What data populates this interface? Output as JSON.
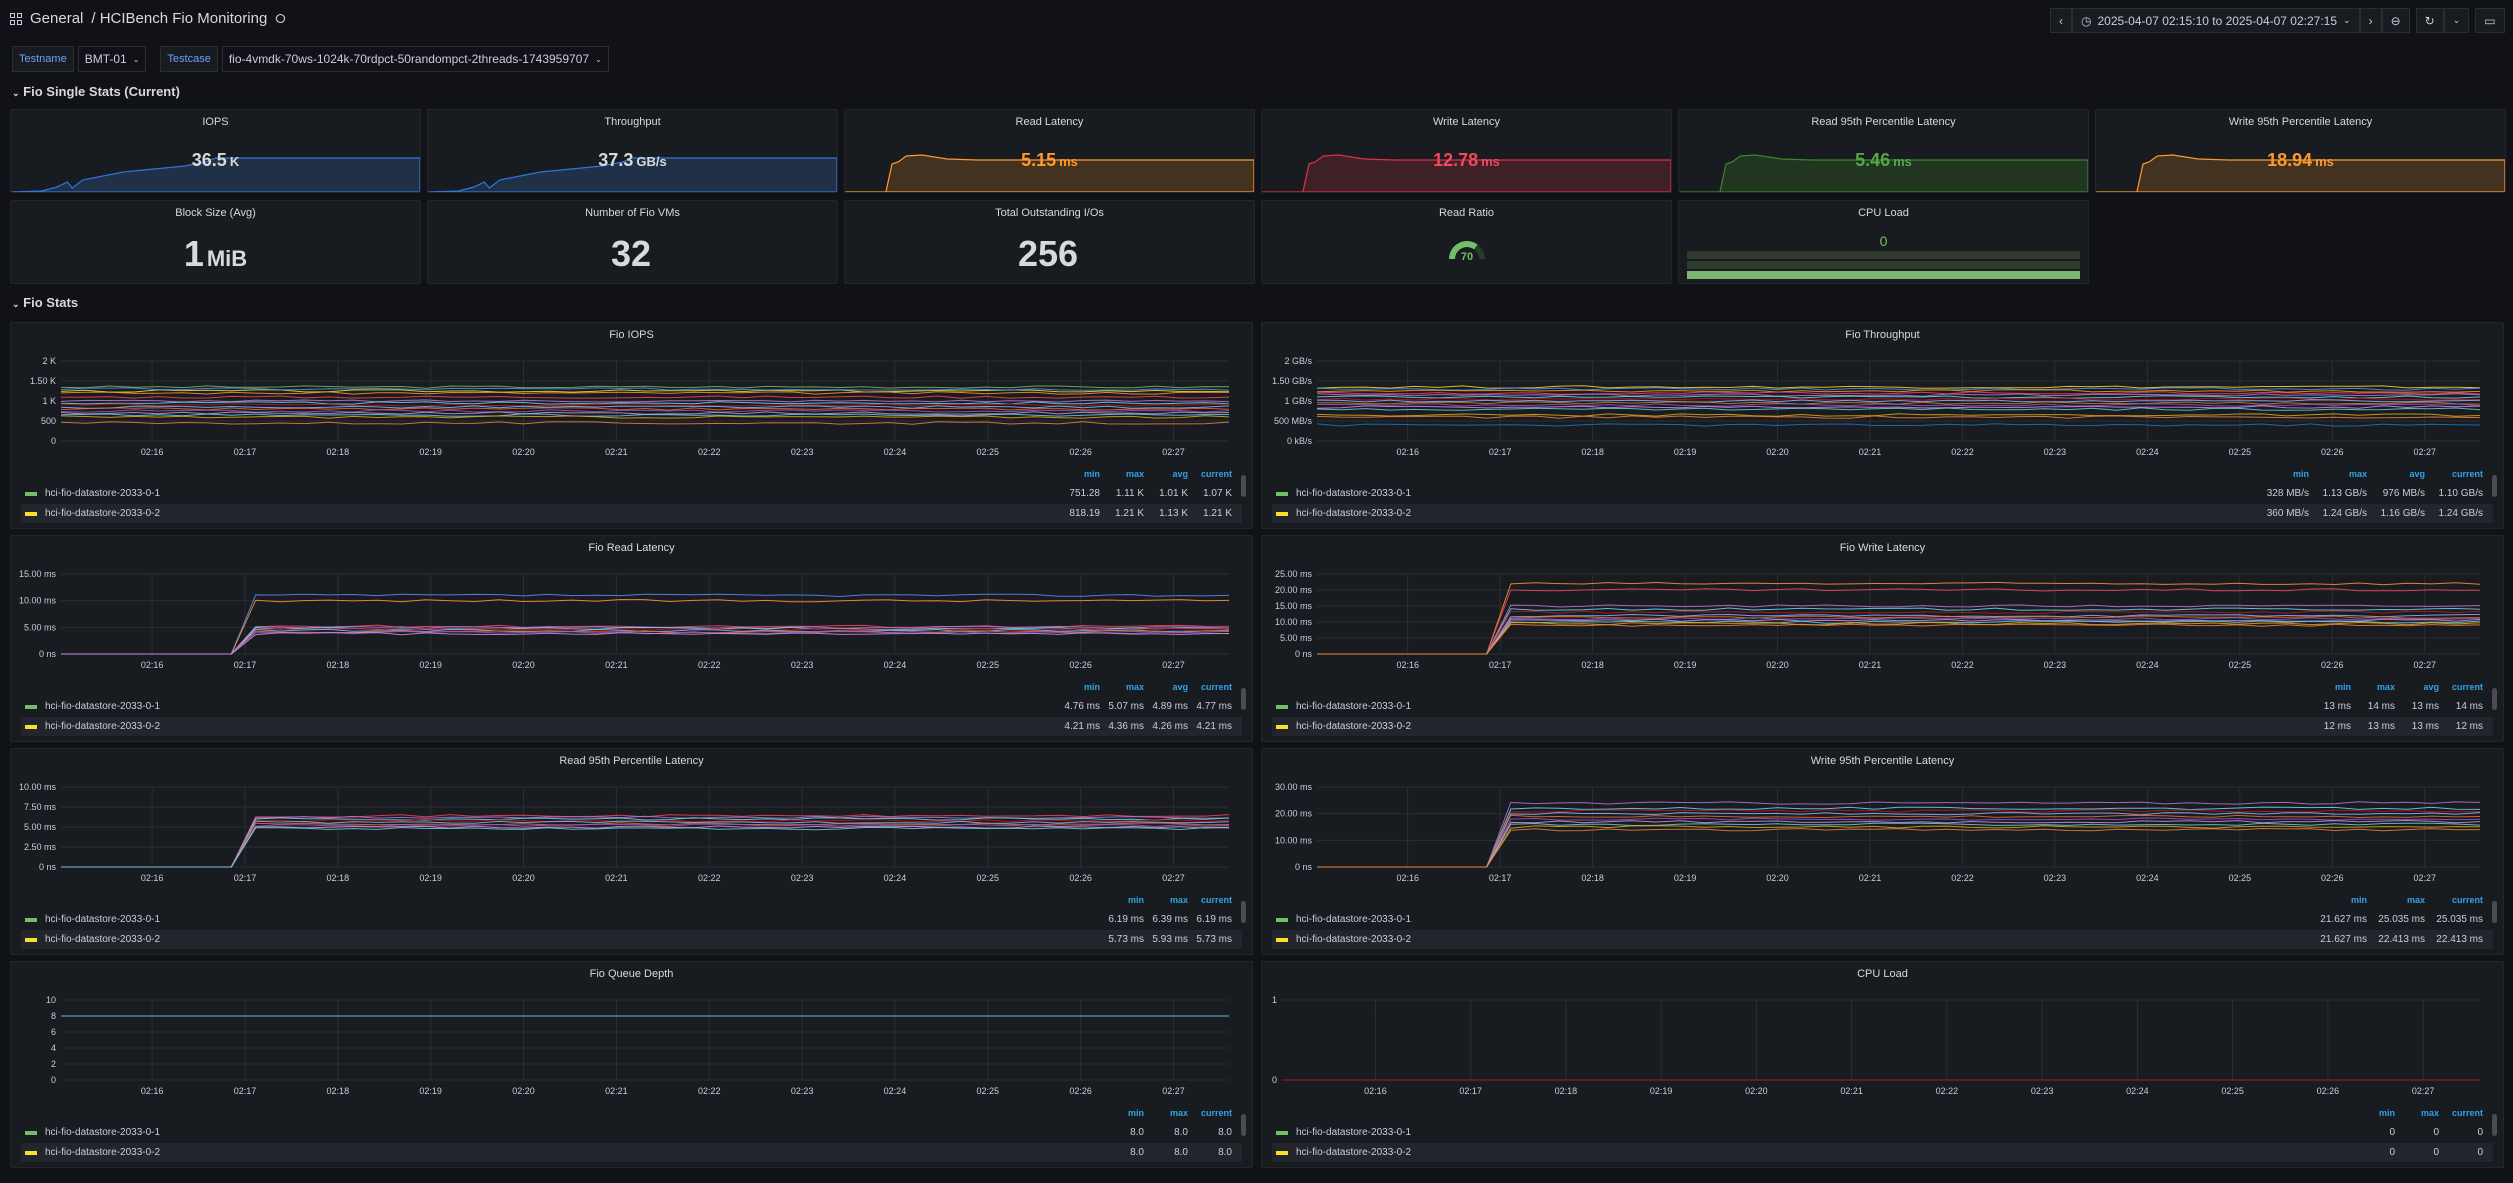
{
  "header": {
    "folder": "General",
    "title": "/ HCIBench Fio Monitoring",
    "time_range": "2025-04-07 02:15:10 to 2025-04-07 02:27:15"
  },
  "variables": [
    {
      "label": "Testname",
      "value": "BMT-01"
    },
    {
      "label": "Testcase",
      "value": "fio-4vmdk-70ws-1024k-70rdpct-50randompct-2threads-1743959707"
    }
  ],
  "rows": {
    "single_stats": "Fio Single Stats (Current)",
    "fio_stats": "Fio Stats"
  },
  "stats": [
    {
      "title": "IOPS",
      "value": "36.5",
      "unit": "K",
      "color": "#d8d9da",
      "fill": "#1f3047",
      "line": "#3274d9"
    },
    {
      "title": "Throughput",
      "value": "37.3",
      "unit": "GB/s",
      "color": "#d8d9da",
      "fill": "#1f3047",
      "line": "#3274d9"
    },
    {
      "title": "Read Latency",
      "value": "5.15",
      "unit": "ms",
      "color": "#ff9830",
      "fill": "#42321f",
      "line": "#ff9830"
    },
    {
      "title": "Write Latency",
      "value": "12.78",
      "unit": "ms",
      "color": "#f2495c",
      "fill": "#3f2027",
      "line": "#e02f44"
    },
    {
      "title": "Read 95th Percentile Latency",
      "value": "5.46",
      "unit": "ms",
      "color": "#56a64b",
      "fill": "#213521",
      "line": "#37872d"
    },
    {
      "title": "Write 95th Percentile Latency",
      "value": "18.94",
      "unit": "ms",
      "color": "#ff9830",
      "fill": "#42321f",
      "line": "#ff9830"
    },
    {
      "title": "Block Size (Avg)",
      "value": "1",
      "unit": "MiB",
      "color": "#d8d9da"
    },
    {
      "title": "Number of Fio VMs",
      "value": "32",
      "unit": "",
      "color": "#d8d9da"
    },
    {
      "title": "Total Outstanding I/Os",
      "value": "256",
      "unit": "",
      "color": "#d8d9da"
    },
    {
      "title": "Read Ratio",
      "value": "70",
      "unit": "",
      "color": "#73bf69",
      "gauge_percent": 70
    },
    {
      "title": "CPU Load",
      "value": "0",
      "unit": "",
      "color": "#73bf69"
    }
  ],
  "legend_series": [
    {
      "name": "hci-fio-datastore-2033-0-1",
      "color": "#73bf69"
    },
    {
      "name": "hci-fio-datastore-2033-0-2",
      "color": "#fade2a"
    }
  ],
  "chart_data": [
    {
      "type": "line",
      "title": "Fio IOPS",
      "yticks": [
        "2 K",
        "1.50 K",
        "1 K",
        "500",
        "0"
      ],
      "ylim": [
        0,
        2000
      ],
      "xticks": [
        "02:16",
        "02:17",
        "02:18",
        "02:19",
        "02:20",
        "02:21",
        "02:22",
        "02:23",
        "02:24",
        "02:25",
        "02:26",
        "02:27"
      ],
      "legend_cols": [
        "min",
        "max",
        "avg",
        "current"
      ],
      "legend_values": [
        [
          "751.28",
          "1.11 K",
          "1.01 K",
          "1.07 K"
        ],
        [
          "818.19",
          "1.21 K",
          "1.13 K",
          "1.21 K"
        ]
      ],
      "series_levels": [
        1350,
        1250,
        1300,
        1200,
        1100,
        1000,
        950,
        900,
        850,
        800,
        750,
        700,
        650,
        600,
        450
      ]
    },
    {
      "type": "line",
      "title": "Fio Throughput",
      "yticks": [
        "2 GB/s",
        "1.50 GB/s",
        "1 GB/s",
        "500 MB/s",
        "0 kB/s"
      ],
      "ylim": [
        0,
        2000
      ],
      "xticks": [
        "02:16",
        "02:17",
        "02:18",
        "02:19",
        "02:20",
        "02:21",
        "02:22",
        "02:23",
        "02:24",
        "02:25",
        "02:26",
        "02:27"
      ],
      "legend_cols": [
        "min",
        "max",
        "avg",
        "current"
      ],
      "legend_values": [
        [
          "328 MB/s",
          "1.13 GB/s",
          "976 MB/s",
          "1.10 GB/s"
        ],
        [
          "360 MB/s",
          "1.24 GB/s",
          "1.16 GB/s",
          "1.24 GB/s"
        ]
      ],
      "series_levels": [
        1350,
        1300,
        1250,
        1200,
        1150,
        1100,
        1050,
        1000,
        950,
        900,
        850,
        800,
        650,
        600,
        400
      ]
    },
    {
      "type": "line",
      "title": "Fio Read Latency",
      "yticks": [
        "15.00 ms",
        "10.00 ms",
        "5.00 ms",
        "0 ns"
      ],
      "ylim": [
        0,
        15
      ],
      "xticks": [
        "02:16",
        "02:17",
        "02:18",
        "02:19",
        "02:20",
        "02:21",
        "02:22",
        "02:23",
        "02:24",
        "02:25",
        "02:26",
        "02:27"
      ],
      "legend_cols": [
        "min",
        "max",
        "avg",
        "current"
      ],
      "legend_values": [
        [
          "4.76 ms",
          "5.07 ms",
          "4.89 ms",
          "4.77 ms"
        ],
        [
          "4.21 ms",
          "4.36 ms",
          "4.26 ms",
          "4.21 ms"
        ]
      ],
      "series_levels": [
        11,
        10,
        5.2,
        5,
        4.8,
        4.6,
        4.4,
        4.2,
        4,
        3.8
      ],
      "ramp_at": 1.0
    },
    {
      "type": "line",
      "title": "Fio Write Latency",
      "yticks": [
        "25.00 ms",
        "20.00 ms",
        "15.00 ms",
        "10.00 ms",
        "5.00 ms",
        "0 ns"
      ],
      "ylim": [
        0,
        25
      ],
      "xticks": [
        "02:16",
        "02:17",
        "02:18",
        "02:19",
        "02:20",
        "02:21",
        "02:22",
        "02:23",
        "02:24",
        "02:25",
        "02:26",
        "02:27"
      ],
      "legend_cols": [
        "min",
        "max",
        "avg",
        "current"
      ],
      "legend_values": [
        [
          "13 ms",
          "14 ms",
          "13 ms",
          "14 ms"
        ],
        [
          "12 ms",
          "13 ms",
          "13 ms",
          "12 ms"
        ]
      ],
      "series_levels": [
        22,
        20,
        15,
        14,
        13,
        12,
        11.5,
        11,
        10.5,
        10,
        9.5,
        9
      ],
      "ramp_at": 1.0
    },
    {
      "type": "line",
      "title": "Read 95th Percentile Latency",
      "yticks": [
        "10.00 ms",
        "7.50 ms",
        "5.00 ms",
        "2.50 ms",
        "0 ns"
      ],
      "ylim": [
        0,
        10
      ],
      "xticks": [
        "02:16",
        "02:17",
        "02:18",
        "02:19",
        "02:20",
        "02:21",
        "02:22",
        "02:23",
        "02:24",
        "02:25",
        "02:26",
        "02:27"
      ],
      "legend_cols": [
        "min",
        "max",
        "current"
      ],
      "legend_values": [
        [
          "6.19 ms",
          "6.39 ms",
          "6.19 ms"
        ],
        [
          "5.73 ms",
          "5.93 ms",
          "5.73 ms"
        ]
      ],
      "series_levels": [
        6.4,
        6.2,
        6.0,
        5.8,
        5.6,
        5.4,
        5.2,
        5.0,
        4.8
      ],
      "ramp_at": 1.0
    },
    {
      "type": "line",
      "title": "Write 95th Percentile Latency",
      "yticks": [
        "30.00 ms",
        "20.00 ms",
        "10.00 ms",
        "0 ns"
      ],
      "ylim": [
        0,
        30
      ],
      "xticks": [
        "02:16",
        "02:17",
        "02:18",
        "02:19",
        "02:20",
        "02:21",
        "02:22",
        "02:23",
        "02:24",
        "02:25",
        "02:26",
        "02:27"
      ],
      "legend_cols": [
        "min",
        "max",
        "current"
      ],
      "legend_values": [
        [
          "21.627 ms",
          "25.035 ms",
          "25.035 ms"
        ],
        [
          "21.627 ms",
          "22.413 ms",
          "22.413 ms"
        ]
      ],
      "series_levels": [
        24,
        22,
        21,
        20,
        19,
        18,
        17,
        16,
        15,
        14
      ],
      "ramp_at": 1.0
    },
    {
      "type": "line",
      "title": "Fio Queue Depth",
      "yticks": [
        "10",
        "8",
        "6",
        "4",
        "2",
        "0"
      ],
      "ylim": [
        0,
        10
      ],
      "xticks": [
        "02:16",
        "02:17",
        "02:18",
        "02:19",
        "02:20",
        "02:21",
        "02:22",
        "02:23",
        "02:24",
        "02:25",
        "02:26",
        "02:27"
      ],
      "legend_cols": [
        "min",
        "max",
        "current"
      ],
      "legend_values": [
        [
          "8.0",
          "8.0",
          "8.0"
        ],
        [
          "8.0",
          "8.0",
          "8.0"
        ]
      ],
      "series_levels": [
        8
      ]
    },
    {
      "type": "line",
      "title": "CPU Load",
      "yticks": [
        "1",
        "0"
      ],
      "ylim": [
        0,
        1
      ],
      "xticks": [
        "02:16",
        "02:17",
        "02:18",
        "02:19",
        "02:20",
        "02:21",
        "02:22",
        "02:23",
        "02:24",
        "02:25",
        "02:26",
        "02:27"
      ],
      "legend_cols": [
        "min",
        "max",
        "current"
      ],
      "legend_values": [
        [
          "0",
          "0",
          "0"
        ],
        [
          "0",
          "0",
          "0"
        ]
      ],
      "series_levels": [
        0
      ]
    }
  ],
  "palette": [
    "#73bf69",
    "#fade2a",
    "#5794f2",
    "#ff9830",
    "#f2495c",
    "#b877d9",
    "#70dbed",
    "#c4162a",
    "#8ab8ff",
    "#e0752d",
    "#a352cc",
    "#ca95e5",
    "#6ed0e0",
    "#e5ac0e",
    "#ef843c",
    "#1f78c1"
  ]
}
